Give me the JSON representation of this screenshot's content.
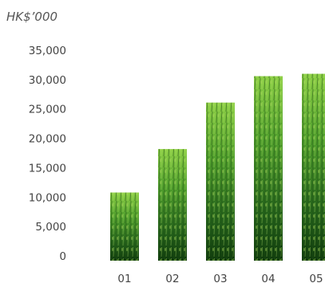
{
  "chart_data": {
    "type": "bar",
    "unit_label": "HK$’000",
    "categories": [
      "01",
      "02",
      "03",
      "04",
      "05"
    ],
    "values": [
      11600,
      19000,
      26900,
      31400,
      31800
    ],
    "ylim": [
      0,
      35000
    ],
    "yticks": [
      0,
      5000,
      10000,
      15000,
      20000,
      25000,
      30000,
      35000
    ],
    "ytick_labels": [
      "0",
      "5,000",
      "10,000",
      "15,000",
      "20,000",
      "25,000",
      "30,000",
      "35,000"
    ],
    "grid": false,
    "legend": "none",
    "bar_fill": "wheat-field texture",
    "colors": {
      "bar_dark": "#0f3a0c",
      "bar_mid": "#2f7d1f",
      "bar_light": "#8ccf45",
      "text": "#444444"
    }
  }
}
